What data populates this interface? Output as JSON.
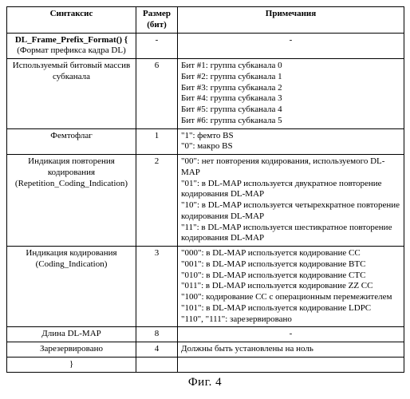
{
  "headers": {
    "c1": "Синтаксис",
    "c2": "Размер (бит)",
    "c3": "Примечания"
  },
  "rows": [
    {
      "syntax_bold": "DL_Frame_Prefix_Format() {",
      "syntax_sub": "(Формат префикса кадра DL)",
      "size": "-",
      "notes": [
        "-"
      ],
      "notes_align": "center"
    },
    {
      "syntax": "Используемый битовый массив субканала",
      "size": "6",
      "notes": [
        "Бит #1: группа субканала 0",
        "Бит #2: группа субканала 1",
        "Бит #3: группа субканала 2",
        "Бит #4: группа субканала 3",
        "Бит #5: группа субканала 4",
        "Бит #6: группа субканала 5"
      ]
    },
    {
      "syntax": "Фемтофлаг",
      "size": "1",
      "notes": [
        "\"1\": фемто BS",
        "\"0\": макро BS"
      ]
    },
    {
      "syntax": "Индикация повторения кодирования",
      "syntax_sub": "(Repetition_Coding_Indication)",
      "size": "2",
      "notes": [
        "\"00\": нет повторения кодирования, используемого DL-MAP",
        "\"01\": в DL-MAP используется двукратное повторение кодирования DL-MAP",
        "\"10\": в DL-MAP используется четырехкратное повторение кодирования DL-MAP",
        "\"11\": в DL-MAP используется шестикратное повторение кодирования DL-MAP"
      ]
    },
    {
      "syntax": "Индикация кодирования",
      "syntax_sub": "(Coding_Indication)",
      "size": "3",
      "notes": [
        "\"000\": в DL-MAP используется кодирование CC",
        "\"001\": в DL-MAP используется кодирование BTC",
        "\"010\": в DL-MAP используется кодирование CTC",
        "\"011\": в DL-MAP используется кодирование ZZ CC",
        "\"100\": кодирование CC с операционным перемежителем",
        "\"101\": в DL-MAP используется кодирование LDPC",
        "\"110\", \"111\": зарезервировано"
      ]
    },
    {
      "syntax": "Длина DL-MAP",
      "size": "8",
      "notes": [
        "-"
      ],
      "notes_align": "center"
    },
    {
      "syntax": "Зарезервировано",
      "size": "4",
      "notes": [
        "Должны быть установлены на ноль"
      ]
    },
    {
      "syntax": "}",
      "size": "",
      "notes": [
        ""
      ]
    }
  ],
  "caption": "Фиг. 4"
}
